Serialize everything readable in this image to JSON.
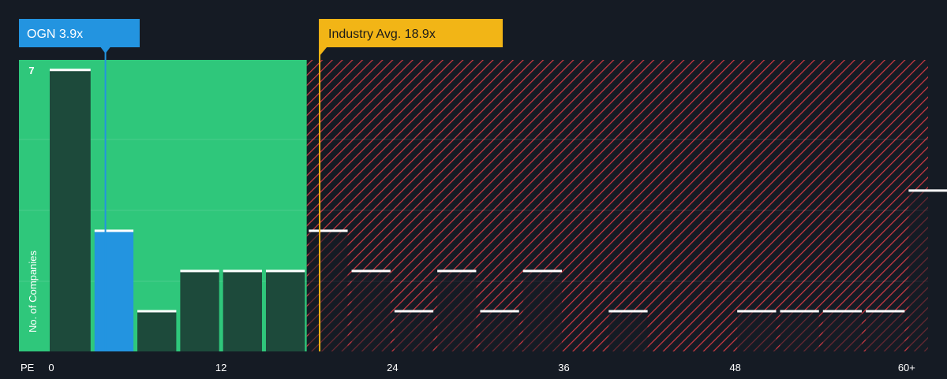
{
  "chart_data": {
    "type": "bar",
    "xlabel": "PE",
    "ylabel": "No. of Companies",
    "x_ticks": [
      "0",
      "12",
      "24",
      "36",
      "48",
      "60+"
    ],
    "x_tick_values": [
      0,
      12,
      24,
      36,
      48,
      60
    ],
    "y_ticks": [
      "7"
    ],
    "y_tick_values": [
      7
    ],
    "xlim": [
      0,
      61.5
    ],
    "ylim": [
      0,
      7.25
    ],
    "bin_width": 3,
    "bins": [
      {
        "start": 0,
        "value": 7
      },
      {
        "start": 3,
        "value": 3,
        "highlight": true
      },
      {
        "start": 6,
        "value": 1
      },
      {
        "start": 9,
        "value": 2
      },
      {
        "start": 12,
        "value": 2
      },
      {
        "start": 15,
        "value": 2
      },
      {
        "start": 18,
        "value": 3
      },
      {
        "start": 21,
        "value": 2
      },
      {
        "start": 24,
        "value": 1
      },
      {
        "start": 27,
        "value": 2
      },
      {
        "start": 30,
        "value": 1
      },
      {
        "start": 33,
        "value": 2
      },
      {
        "start": 36,
        "value": 0
      },
      {
        "start": 39,
        "value": 1
      },
      {
        "start": 42,
        "value": 0
      },
      {
        "start": 45,
        "value": 0
      },
      {
        "start": 48,
        "value": 1
      },
      {
        "start": 51,
        "value": 1
      },
      {
        "start": 54,
        "value": 1
      },
      {
        "start": 57,
        "value": 1
      },
      {
        "start": 60,
        "value": 4
      }
    ],
    "company": {
      "label": "OGN 3.9x",
      "value": 3.9,
      "color": "#2394e0"
    },
    "industry": {
      "label": "Industry Avg. 18.9x",
      "value": 18.9,
      "color": "#f2b516"
    },
    "fair_zone_end": 18,
    "colors": {
      "background": "#151b24",
      "green_zone": "#2fc77b",
      "bar_dark": "#1d4a3b",
      "red_hatch": "#d23a44",
      "cap": "#ffffff",
      "axis_text": "#ffffff"
    }
  }
}
